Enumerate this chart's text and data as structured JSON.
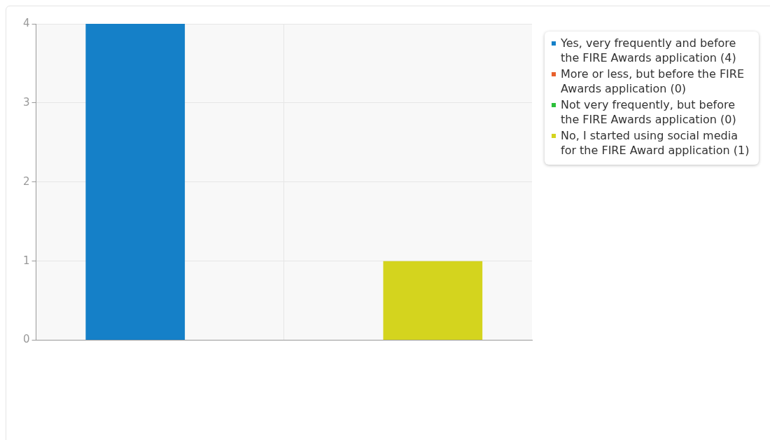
{
  "chart_data": {
    "type": "bar",
    "categories": [
      null
    ],
    "series": [
      {
        "name": "Yes, very frequently and before the FIRE Awards application (4)",
        "color": "#1580c8",
        "values": [
          4
        ]
      },
      {
        "name": "More or less, but before the FIRE Awards application (0)",
        "color": "#e8602c",
        "values": [
          0
        ]
      },
      {
        "name": "Not very frequently, but before the FIRE Awards application (0)",
        "color": "#2cc03a",
        "values": [
          0
        ]
      },
      {
        "name": "No, I started using social media for the FIRE Award application (1)",
        "color": "#d4d41e",
        "values": [
          1
        ]
      }
    ],
    "ylim": [
      0,
      4
    ],
    "yticks": [
      0,
      1,
      2,
      3,
      4
    ],
    "grid": true,
    "legend": "right"
  }
}
